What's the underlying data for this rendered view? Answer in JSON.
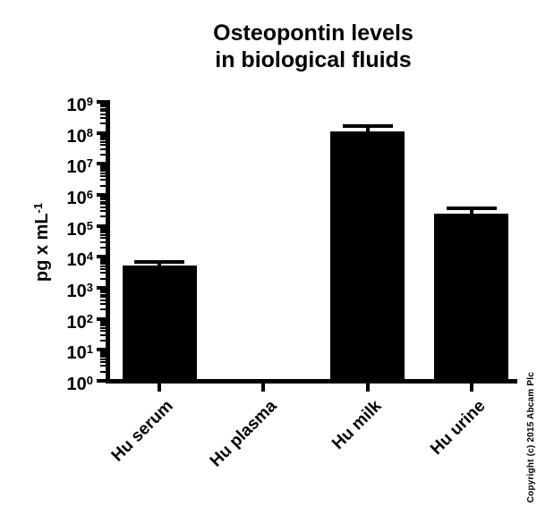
{
  "copyright": "Copyright (c) 2015 Abcam Plc",
  "chart_data": {
    "type": "bar",
    "title": "Osteopontin levels\nin biological fluids",
    "ylabel": "pg x mL",
    "ylabel_exponent": "-1",
    "xlabel": "",
    "yscale": "log",
    "ylim": [
      1,
      1000000000
    ],
    "y_tick_exponents": [
      0,
      1,
      2,
      3,
      4,
      5,
      6,
      7,
      8,
      9
    ],
    "y_tick_base": "10",
    "grid": false,
    "legend": "none",
    "bar_color": "#000000",
    "background_color": "#ffffff",
    "categories": [
      "Hu serum",
      "Hu plasma",
      "Hu milk",
      "Hu urine"
    ],
    "values": [
      5300,
      null,
      115000000,
      240000
    ],
    "error_top_values": [
      7000,
      null,
      170000000,
      360000
    ],
    "notes": "Hu plasma shows no detectable bar (below 10^0 axis minimum)"
  }
}
